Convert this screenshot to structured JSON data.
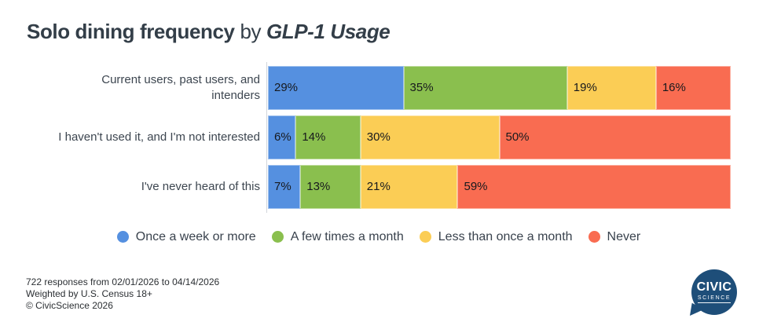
{
  "title": {
    "main": "Solo dining frequency",
    "connector": " by ",
    "emphasis": "GLP-1 Usage"
  },
  "chart_data": {
    "type": "bar",
    "stacked": true,
    "orientation": "horizontal",
    "unit": "%",
    "xlim": [
      0,
      100
    ],
    "grid": false,
    "legend_position": "bottom",
    "categories": [
      "Current users, past users, and\nintenders",
      "I haven't used it, and I'm not interested",
      "I've never heard of this"
    ],
    "series": [
      {
        "name": "Once a week or more",
        "color": "#5590e0",
        "values": [
          29,
          6,
          7
        ]
      },
      {
        "name": "A few times a month",
        "color": "#8abf4e",
        "values": [
          35,
          14,
          13
        ]
      },
      {
        "name": "Less than once a month",
        "color": "#fbcd55",
        "values": [
          19,
          30,
          21
        ]
      },
      {
        "name": "Never",
        "color": "#f96c51",
        "values": [
          16,
          50,
          59
        ]
      }
    ]
  },
  "footer": {
    "responses": "722 responses from 02/01/2026 to 04/14/2026",
    "weighting": "Weighted by U.S. Census 18+",
    "copyright": "© CivicScience 2026"
  },
  "logo": {
    "line1": "CIVIC",
    "line2": "SCIENCE"
  }
}
